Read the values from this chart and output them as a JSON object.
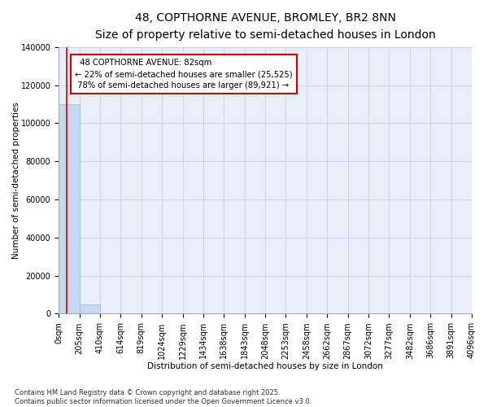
{
  "title": "48, COPTHORNE AVENUE, BROMLEY, BR2 8NN",
  "subtitle": "Size of property relative to semi-detached houses in London",
  "xlabel": "Distribution of semi-detached houses by size in London",
  "ylabel": "Number of semi-detached properties",
  "property_size": 82,
  "property_label": "48 COPTHORNE AVENUE: 82sqm",
  "pct_smaller": 22,
  "pct_larger": 78,
  "count_smaller": 25525,
  "count_larger": 89921,
  "bin_edges": [
    0,
    205,
    410,
    614,
    819,
    1024,
    1229,
    1434,
    1638,
    1843,
    2048,
    2253,
    2458,
    2662,
    2867,
    3072,
    3277,
    3482,
    3686,
    3891,
    4096
  ],
  "bar_heights": [
    110000,
    5000,
    300,
    150,
    80,
    60,
    45,
    35,
    28,
    22,
    18,
    15,
    12,
    10,
    8,
    7,
    6,
    5,
    4,
    3
  ],
  "bar_color": "#c5d8f0",
  "bar_edge_color": "#9ab8d8",
  "grid_color": "#c8d4e8",
  "bg_color": "#e8eef8",
  "red_line_color": "#cc0000",
  "annotation_box_color": "#cc0000",
  "ylim": [
    0,
    140000
  ],
  "yticks": [
    0,
    20000,
    40000,
    60000,
    80000,
    100000,
    120000,
    140000
  ],
  "tick_labels": [
    "0sqm",
    "205sqm",
    "410sqm",
    "614sqm",
    "819sqm",
    "1024sqm",
    "1229sqm",
    "1434sqm",
    "1638sqm",
    "1843sqm",
    "2048sqm",
    "2253sqm",
    "2458sqm",
    "2662sqm",
    "2867sqm",
    "3072sqm",
    "3277sqm",
    "3482sqm",
    "3686sqm",
    "3891sqm",
    "4096sqm"
  ],
  "footnote": "Contains HM Land Registry data © Crown copyright and database right 2025.\nContains public sector information licensed under the Open Government Licence v3.0.",
  "title_fontsize": 10,
  "subtitle_fontsize": 8.5,
  "label_fontsize": 7.5,
  "tick_fontsize": 7,
  "footnote_fontsize": 6
}
